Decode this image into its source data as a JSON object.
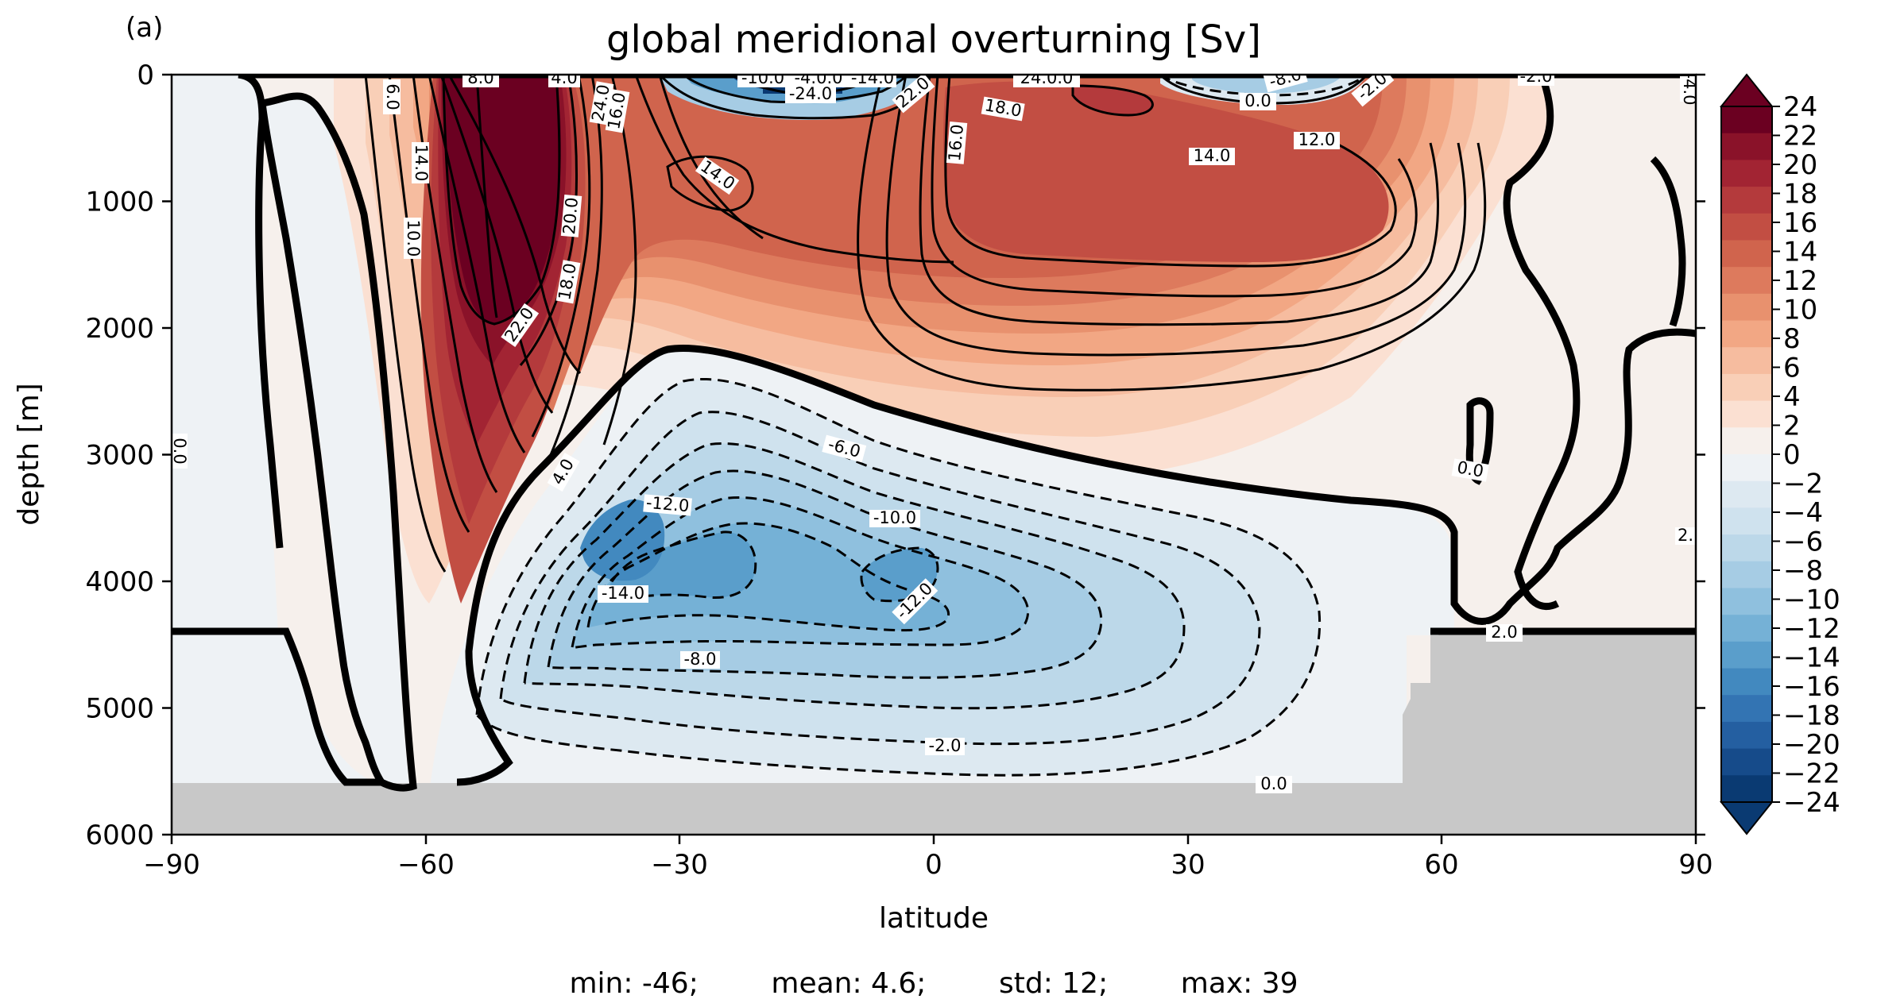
{
  "panel_label": "(a)",
  "chart_data": {
    "type": "contour",
    "title": "global meridional overturning [Sv]",
    "xlabel": "latitude",
    "ylabel": "depth [m]",
    "xlim": [
      -90,
      90
    ],
    "ylim": [
      6000,
      0
    ],
    "xticks": [
      "−90",
      "−60",
      "−30",
      "0",
      "30",
      "60",
      "90"
    ],
    "yticks": [
      "0",
      "1000",
      "2000",
      "3000",
      "4000",
      "5000",
      "6000"
    ],
    "colorbar": {
      "ticks": [
        "24",
        "22",
        "20",
        "18",
        "16",
        "14",
        "12",
        "10",
        "8",
        "6",
        "4",
        "2",
        "0",
        "−2",
        "−4",
        "−6",
        "−8",
        "−10",
        "−12",
        "−14",
        "−16",
        "−18",
        "−20",
        "−22",
        "−24"
      ],
      "extend": "both",
      "colors_pos": [
        "#f6f0ec",
        "#fbe0d2",
        "#f9cfb7",
        "#f6bc9f",
        "#f2a784",
        "#e8916e",
        "#dd7a5d",
        "#d0644d",
        "#c24e43",
        "#b43a3c",
        "#a22433",
        "#8a1229",
        "#6b0021"
      ],
      "colors_neg": [
        "#eef2f5",
        "#dde9f1",
        "#cfe2ee",
        "#bcd8e9",
        "#a6cce4",
        "#8fc0de",
        "#75b1d6",
        "#5a9ecb",
        "#4289bf",
        "#3374b3",
        "#245fa1",
        "#164b8a",
        "#0a3a72"
      ]
    },
    "contour_labels": [
      "8.0",
      "4.0",
      "24.0",
      "16.0",
      "-10.0",
      "-4.0.0",
      "-14.0",
      "-24.0",
      "22.0",
      "24.0.0",
      "18.0",
      "6.0",
      "14.0",
      "10.0",
      "20.0",
      "18.0",
      "22.0",
      "14.0",
      "16.0",
      "14.0",
      "12.0",
      "0.0",
      "-8.0",
      "-2.0",
      "-2.0",
      "-6.0",
      "4.0",
      "-12.0",
      "-10.0",
      "-14.0",
      "-12.0",
      "-8.0",
      "-2.0",
      "0.0",
      "0.0",
      "0.0",
      "2.0",
      "2.",
      "-4.0"
    ],
    "land_mask": "grey (#c8c8c8) at bottom: depth > 5600 m everywhere; depth > 4400 m north of 56°N",
    "summary_stats": "min: -46;        mean: 4.6;        std: 12;        max: 39"
  }
}
